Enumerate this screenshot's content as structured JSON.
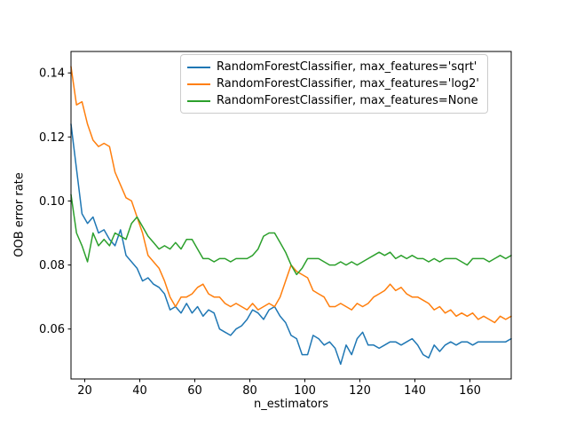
{
  "figure": {
    "background": "#ffffff",
    "text_color": "#000000",
    "spine_color": "#000000"
  },
  "chart_data": {
    "type": "line",
    "title": "",
    "xlabel": "n_estimators",
    "ylabel": "OOB error rate",
    "xlim": [
      15,
      175
    ],
    "ylim": [
      0.0444,
      0.1467
    ],
    "xticks": [
      20,
      40,
      60,
      80,
      100,
      120,
      140,
      160
    ],
    "yticks": [
      0.06,
      0.08,
      0.1,
      0.12,
      0.14
    ],
    "grid": false,
    "legend_position": "upper center",
    "x": [
      15,
      17,
      19,
      21,
      23,
      25,
      27,
      29,
      31,
      33,
      35,
      37,
      39,
      41,
      43,
      45,
      47,
      49,
      51,
      53,
      55,
      57,
      59,
      61,
      63,
      65,
      67,
      69,
      71,
      73,
      75,
      77,
      79,
      81,
      83,
      85,
      87,
      89,
      91,
      93,
      95,
      97,
      99,
      101,
      103,
      105,
      107,
      109,
      111,
      113,
      115,
      117,
      119,
      121,
      123,
      125,
      127,
      129,
      131,
      133,
      135,
      137,
      139,
      141,
      143,
      145,
      147,
      149,
      151,
      153,
      155,
      157,
      159,
      161,
      163,
      165,
      167,
      169,
      171,
      173,
      175
    ],
    "series": [
      {
        "name": "RandomForestClassifier, max_features='sqrt'",
        "color": "#1f77b4",
        "values": [
          0.124,
          0.11,
          0.096,
          0.093,
          0.095,
          0.09,
          0.091,
          0.088,
          0.086,
          0.091,
          0.083,
          0.081,
          0.079,
          0.075,
          0.076,
          0.074,
          0.073,
          0.071,
          0.066,
          0.067,
          0.065,
          0.068,
          0.065,
          0.067,
          0.064,
          0.066,
          0.065,
          0.06,
          0.059,
          0.058,
          0.06,
          0.061,
          0.063,
          0.066,
          0.065,
          0.063,
          0.066,
          0.067,
          0.064,
          0.062,
          0.058,
          0.057,
          0.052,
          0.052,
          0.058,
          0.057,
          0.055,
          0.056,
          0.054,
          0.049,
          0.055,
          0.052,
          0.057,
          0.059,
          0.055,
          0.055,
          0.054,
          0.055,
          0.056,
          0.056,
          0.055,
          0.056,
          0.057,
          0.055,
          0.052,
          0.051,
          0.055,
          0.053,
          0.055,
          0.056,
          0.055,
          0.056,
          0.056,
          0.055,
          0.056,
          0.056,
          0.056,
          0.056,
          0.056,
          0.056,
          0.057
        ]
      },
      {
        "name": "RandomForestClassifier, max_features='log2'",
        "color": "#ff7f0e",
        "values": [
          0.142,
          0.13,
          0.131,
          0.124,
          0.119,
          0.117,
          0.118,
          0.117,
          0.109,
          0.105,
          0.101,
          0.1,
          0.095,
          0.09,
          0.083,
          0.081,
          0.079,
          0.075,
          0.07,
          0.067,
          0.07,
          0.07,
          0.071,
          0.073,
          0.074,
          0.071,
          0.07,
          0.07,
          0.068,
          0.067,
          0.068,
          0.067,
          0.066,
          0.068,
          0.066,
          0.067,
          0.068,
          0.067,
          0.07,
          0.075,
          0.08,
          0.078,
          0.077,
          0.076,
          0.072,
          0.071,
          0.07,
          0.067,
          0.067,
          0.068,
          0.067,
          0.066,
          0.068,
          0.067,
          0.068,
          0.07,
          0.071,
          0.072,
          0.074,
          0.072,
          0.073,
          0.071,
          0.07,
          0.07,
          0.069,
          0.068,
          0.066,
          0.067,
          0.065,
          0.066,
          0.064,
          0.065,
          0.064,
          0.065,
          0.063,
          0.064,
          0.063,
          0.062,
          0.064,
          0.063,
          0.064
        ]
      },
      {
        "name": "RandomForestClassifier, max_features=None",
        "color": "#2ca02c",
        "values": [
          0.102,
          0.09,
          0.086,
          0.081,
          0.09,
          0.086,
          0.088,
          0.086,
          0.09,
          0.089,
          0.088,
          0.093,
          0.095,
          0.092,
          0.089,
          0.087,
          0.085,
          0.086,
          0.085,
          0.087,
          0.085,
          0.088,
          0.088,
          0.085,
          0.082,
          0.082,
          0.081,
          0.082,
          0.082,
          0.081,
          0.082,
          0.082,
          0.082,
          0.083,
          0.085,
          0.089,
          0.09,
          0.09,
          0.087,
          0.084,
          0.08,
          0.077,
          0.079,
          0.082,
          0.082,
          0.082,
          0.081,
          0.08,
          0.08,
          0.081,
          0.08,
          0.081,
          0.08,
          0.081,
          0.082,
          0.083,
          0.084,
          0.083,
          0.084,
          0.082,
          0.083,
          0.082,
          0.083,
          0.082,
          0.082,
          0.081,
          0.082,
          0.081,
          0.082,
          0.082,
          0.082,
          0.081,
          0.08,
          0.082,
          0.082,
          0.082,
          0.081,
          0.082,
          0.083,
          0.082,
          0.083
        ]
      }
    ]
  }
}
